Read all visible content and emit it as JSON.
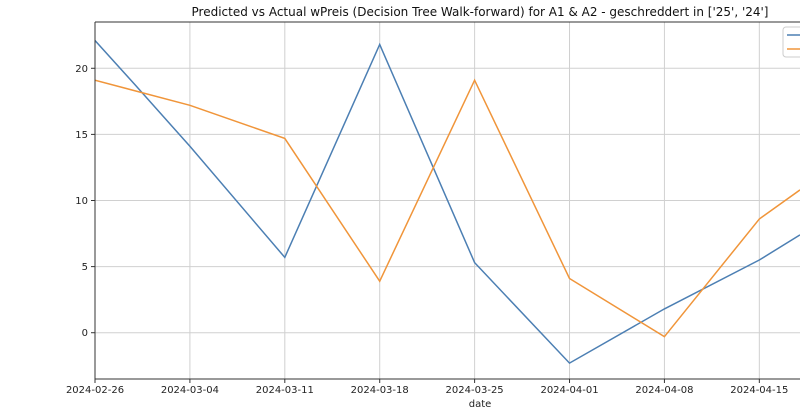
{
  "chart_data": {
    "type": "line",
    "title": "Predicted vs Actual wPreis (Decision Tree Walk-forward) for A1 & A2 -  geschreddert in ['25', '24']",
    "xlabel": "date",
    "ylabel": "",
    "x_ticks": [
      "2024-02-26",
      "2024-03-04",
      "2024-03-11",
      "2024-03-18",
      "2024-03-25",
      "2024-04-01",
      "2024-04-08",
      "2024-04-15"
    ],
    "y_ticks": [
      0,
      5,
      10,
      15,
      20
    ],
    "xlim": [
      "2024-02-26",
      "2024-04-18"
    ],
    "ylim": [
      -3.5,
      23.5
    ],
    "grid": true,
    "legend": "top-right",
    "series": [
      {
        "color": "#4c7fb3",
        "x": [
          "2024-02-26",
          "2024-02-29",
          "2024-03-04",
          "2024-03-11",
          "2024-03-18",
          "2024-03-25",
          "2024-04-01",
          "2024-04-08",
          "2024-04-15",
          "2024-04-18"
        ],
        "y": [
          22.1,
          18.7,
          14.1,
          5.7,
          21.8,
          5.3,
          -2.3,
          1.8,
          5.5,
          7.4
        ]
      },
      {
        "color": "#f0953a",
        "x": [
          "2024-02-26",
          "2024-03-04",
          "2024-03-11",
          "2024-03-18",
          "2024-03-25",
          "2024-04-01",
          "2024-04-08",
          "2024-04-15",
          "2024-04-18"
        ],
        "y": [
          19.1,
          17.2,
          14.7,
          3.9,
          19.1,
          4.1,
          -0.3,
          8.6,
          10.8
        ]
      }
    ]
  }
}
